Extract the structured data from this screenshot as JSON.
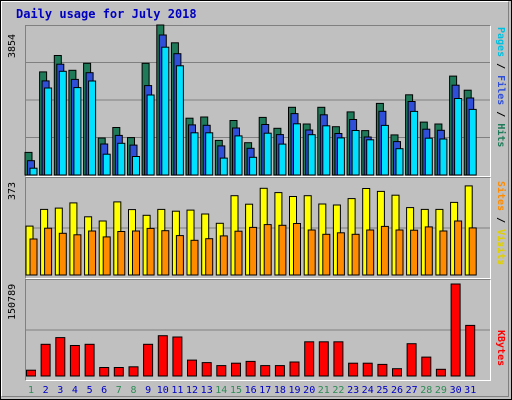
{
  "title": "Daily usage for July 2018",
  "colors": {
    "hits": "#1f7a5a",
    "files": "#2f4fd8",
    "pages": "#00e0ff",
    "visits": "#ffff00",
    "sites": "#ff8c00",
    "kbytes": "#ff0000",
    "weekend_day": "#2e8b57",
    "weekday": "#0000c0"
  },
  "legend": {
    "pages": "Pages",
    "files": "Files",
    "hits": "Hits",
    "sites": "Sites",
    "visits": "Visits",
    "kbytes": "KBytes",
    "sep": " / "
  },
  "chart_data": [
    {
      "type": "bar",
      "categories": [
        "1",
        "2",
        "3",
        "4",
        "5",
        "6",
        "7",
        "8",
        "9",
        "10",
        "11",
        "12",
        "13",
        "14",
        "15",
        "16",
        "17",
        "18",
        "19",
        "20",
        "21",
        "22",
        "23",
        "24",
        "25",
        "26",
        "27",
        "28",
        "29",
        "30",
        "31"
      ],
      "ylim": [
        0,
        3854
      ],
      "tick_label": "3854",
      "series": [
        {
          "name": "Hits",
          "values": [
            580,
            2650,
            3070,
            2690,
            2870,
            950,
            1220,
            960,
            2870,
            3854,
            3396,
            1460,
            1490,
            890,
            1400,
            830,
            1480,
            1200,
            1740,
            1310,
            1740,
            1240,
            1620,
            1140,
            1840,
            1030,
            2060,
            1360,
            1310,
            2540,
            2180
          ]
        },
        {
          "name": "Files",
          "values": [
            470,
            2520,
            2950,
            2560,
            2730,
            900,
            1120,
            870,
            2400,
            3700,
            3220,
            1390,
            1380,
            850,
            1310,
            790,
            1400,
            1140,
            1680,
            1260,
            1650,
            1170,
            1530,
            1080,
            1740,
            960,
            1990,
            1280,
            1250,
            2410,
            2080
          ]
        },
        {
          "name": "Pages",
          "values": [
            380,
            2440,
            2870,
            2450,
            2620,
            740,
            1020,
            680,
            2260,
            3490,
            3010,
            1290,
            1290,
            640,
            1210,
            660,
            1280,
            1000,
            1520,
            1240,
            1470,
            1160,
            1350,
            1110,
            1480,
            880,
            1840,
            1150,
            1130,
            2170,
            1890
          ]
        }
      ]
    },
    {
      "type": "bar",
      "categories": [
        "1",
        "2",
        "3",
        "4",
        "5",
        "6",
        "7",
        "8",
        "9",
        "10",
        "11",
        "12",
        "13",
        "14",
        "15",
        "16",
        "17",
        "18",
        "19",
        "20",
        "21",
        "22",
        "23",
        "24",
        "25",
        "26",
        "27",
        "28",
        "29",
        "30",
        "31"
      ],
      "ylim": [
        0,
        373
      ],
      "tick_label": "373",
      "series": [
        {
          "name": "Visits",
          "values": [
            190,
            255,
            260,
            280,
            226,
            210,
            284,
            254,
            232,
            255,
            248,
            252,
            237,
            201,
            308,
            275,
            337,
            320,
            305,
            308,
            276,
            272,
            297,
            336,
            325,
            310,
            262,
            255,
            255,
            282,
            346
          ]
        },
        {
          "name": "Sites",
          "values": [
            140,
            182,
            162,
            156,
            171,
            148,
            169,
            171,
            181,
            172,
            153,
            135,
            141,
            152,
            170,
            185,
            196,
            193,
            200,
            175,
            158,
            164,
            158,
            175,
            189,
            175,
            174,
            187,
            171,
            210,
            183
          ]
        }
      ]
    },
    {
      "type": "bar",
      "categories": [
        "1",
        "2",
        "3",
        "4",
        "5",
        "6",
        "7",
        "8",
        "9",
        "10",
        "11",
        "12",
        "13",
        "14",
        "15",
        "16",
        "17",
        "18",
        "19",
        "20",
        "21",
        "22",
        "23",
        "24",
        "25",
        "26",
        "27",
        "28",
        "29",
        "30",
        "31"
      ],
      "ylim": [
        0,
        150789
      ],
      "tick_label": "150789",
      "series": [
        {
          "name": "KBytes",
          "values": [
            9500,
            52000,
            63000,
            50000,
            52000,
            14000,
            14000,
            15000,
            52000,
            66000,
            64000,
            26000,
            22000,
            17000,
            21000,
            24000,
            17000,
            17000,
            23000,
            56000,
            56000,
            56000,
            21000,
            21000,
            19000,
            12000,
            53000,
            31000,
            11000,
            150789,
            83000
          ]
        }
      ]
    }
  ]
}
